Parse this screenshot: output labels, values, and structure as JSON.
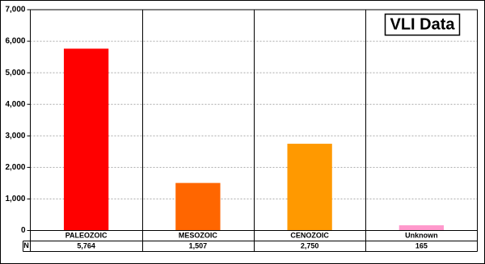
{
  "chart_data": {
    "type": "bar",
    "title": "VLI Data",
    "categories": [
      "PALEOZOIC",
      "MESOZOIC",
      "CENOZOIC",
      "Unknown"
    ],
    "values": [
      5764,
      1507,
      2750,
      165
    ],
    "value_labels": [
      "5,764",
      "1,507",
      "2,750",
      "165"
    ],
    "table_row_label": "N",
    "colors": [
      "#ff0000",
      "#ff6600",
      "#ff9900",
      "#ff99cc"
    ],
    "ylim": [
      0,
      7000
    ],
    "yticks": [
      0,
      {
        "value": 1000,
        "label": "1,000"
      },
      {
        "value": 2000,
        "label": "2,000"
      },
      {
        "value": 3000,
        "label": "3,000"
      },
      {
        "value": 4000,
        "label": "4,000"
      },
      {
        "value": 5000,
        "label": "5,000"
      },
      {
        "value": 6000,
        "label": "6,000"
      },
      {
        "value": 7000,
        "label": "7,000"
      }
    ],
    "grid": true
  }
}
